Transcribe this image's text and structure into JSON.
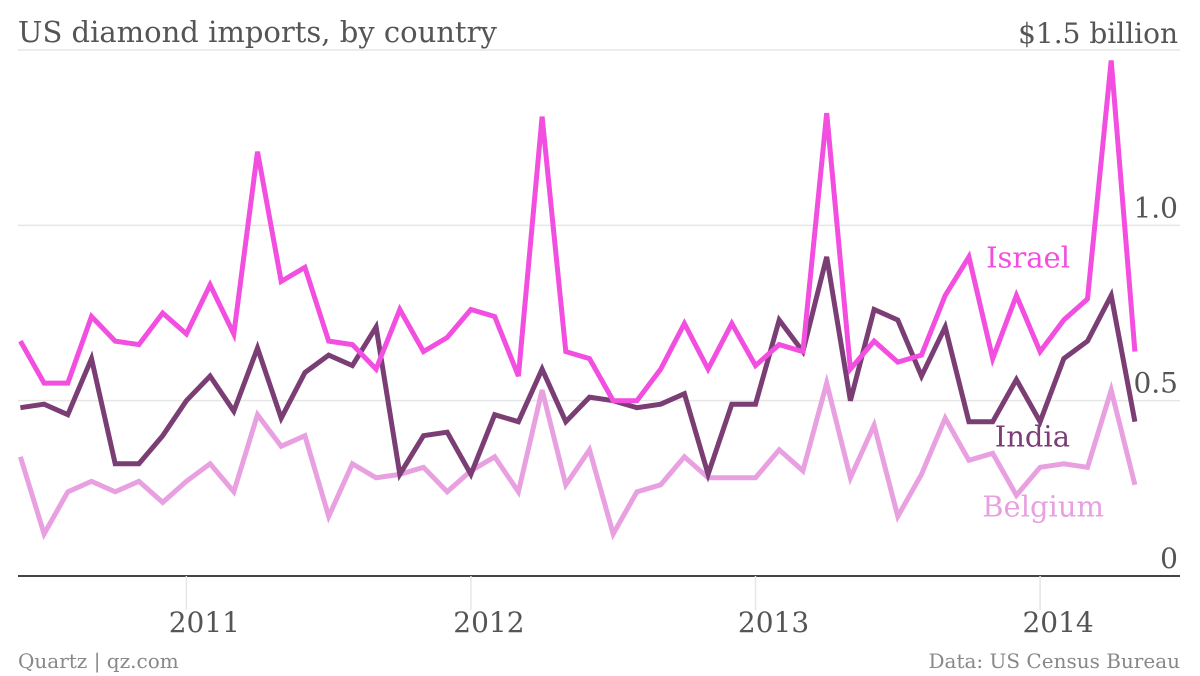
{
  "chart_data": {
    "type": "line",
    "title": "US diamond imports, by country",
    "unit_label": "$1.5 billion",
    "ylim": [
      0,
      1.5
    ],
    "y_ticks": [
      {
        "value": 0.5,
        "label": "0.5"
      },
      {
        "value": 1.0,
        "label": "1.0"
      },
      {
        "value": 0,
        "label": "0"
      }
    ],
    "x_ticks": [
      {
        "index": 7,
        "label": "2011"
      },
      {
        "index": 19,
        "label": "2012"
      },
      {
        "index": 31,
        "label": "2013"
      },
      {
        "index": 43,
        "label": "2014"
      }
    ],
    "xlim": [
      -0.1,
      48.9
    ],
    "grid": true,
    "legend": "inline labels at right",
    "series": [
      {
        "name": "Israel",
        "color": "#f24ee0",
        "values": [
          0.67,
          0.55,
          0.55,
          0.74,
          0.67,
          0.66,
          0.75,
          0.69,
          0.83,
          0.69,
          1.21,
          0.84,
          0.88,
          0.67,
          0.66,
          0.59,
          0.76,
          0.64,
          0.68,
          0.76,
          0.74,
          0.57,
          1.31,
          0.64,
          0.62,
          0.5,
          0.5,
          0.59,
          0.72,
          0.59,
          0.72,
          0.6,
          0.66,
          0.64,
          1.32,
          0.59,
          0.67,
          0.61,
          0.63,
          0.8,
          0.91,
          0.62,
          0.8,
          0.64,
          0.73,
          0.79,
          1.47,
          0.64
        ]
      },
      {
        "name": "India",
        "color": "#7a3d74",
        "values": [
          0.48,
          0.49,
          0.46,
          0.62,
          0.32,
          0.32,
          0.4,
          0.5,
          0.57,
          0.47,
          0.65,
          0.45,
          0.58,
          0.63,
          0.6,
          0.71,
          0.29,
          0.4,
          0.41,
          0.29,
          0.46,
          0.44,
          0.59,
          0.44,
          0.51,
          0.5,
          0.48,
          0.49,
          0.52,
          0.29,
          0.49,
          0.49,
          0.73,
          0.64,
          0.91,
          0.5,
          0.76,
          0.73,
          0.57,
          0.71,
          0.44,
          0.44,
          0.56,
          0.44,
          0.62,
          0.67,
          0.8,
          0.44
        ]
      },
      {
        "name": "Belgium",
        "color": "#e8a0e0",
        "values": [
          0.34,
          0.12,
          0.24,
          0.27,
          0.24,
          0.27,
          0.21,
          0.27,
          0.32,
          0.24,
          0.46,
          0.37,
          0.4,
          0.17,
          0.32,
          0.28,
          0.29,
          0.31,
          0.24,
          0.3,
          0.34,
          0.24,
          0.53,
          0.26,
          0.36,
          0.12,
          0.24,
          0.26,
          0.34,
          0.28,
          0.28,
          0.28,
          0.36,
          0.3,
          0.55,
          0.28,
          0.43,
          0.17,
          0.29,
          0.45,
          0.33,
          0.35,
          0.23,
          0.31,
          0.32,
          0.31,
          0.53,
          0.26
        ]
      }
    ]
  },
  "footer": {
    "source_left": "Quartz | qz.com",
    "source_right": "Data: US Census Bureau"
  }
}
